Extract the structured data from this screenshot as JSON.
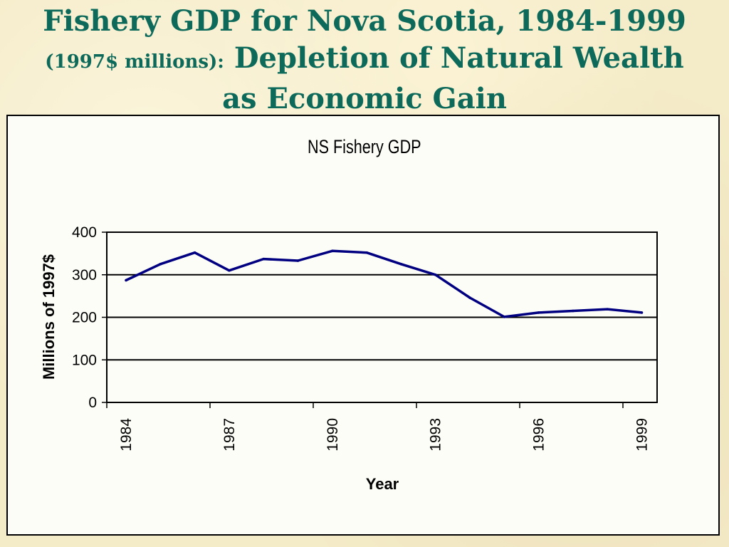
{
  "slide": {
    "title_part1": "Fishery GDP for Nova Scotia, 1984-1999",
    "title_part2": "(1997$ millions):",
    "title_part3": "Depletion of Natural Wealth as Economic Gain"
  },
  "colors": {
    "title": "#0d6a5a",
    "line": "#000080",
    "background": "#f4ebc8"
  },
  "chart_data": {
    "type": "line",
    "title": "NS Fishery GDP",
    "xlabel": "Year",
    "ylabel": "Millions of 1997$",
    "x": [
      1984,
      1985,
      1986,
      1987,
      1988,
      1989,
      1990,
      1991,
      1992,
      1993,
      1994,
      1995,
      1996,
      1997,
      1998,
      1999
    ],
    "values": [
      287,
      325,
      352,
      310,
      337,
      333,
      356,
      352,
      325,
      300,
      246,
      201,
      211,
      215,
      219,
      211
    ],
    "y_ticks": [
      0,
      100,
      200,
      300,
      400
    ],
    "x_ticks": [
      "1984",
      "1987",
      "1990",
      "1993",
      "1996",
      "1999"
    ],
    "ylim": [
      0,
      400
    ],
    "grid": "horizontal",
    "legend": "none"
  }
}
